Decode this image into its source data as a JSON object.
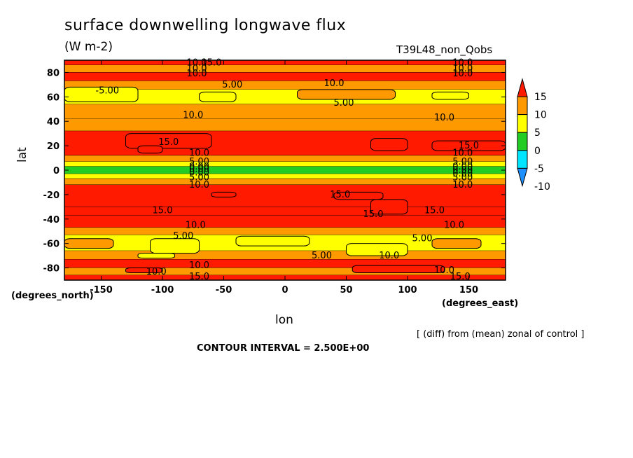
{
  "chart_data": {
    "type": "heatmap",
    "title": "surface downwelling longwave flux",
    "units": "(W m-2)",
    "run_label": "T39L48_non_Qobs",
    "xlabel": "lon",
    "ylabel": "lat",
    "x_units": "(degrees_east)",
    "y_units": "(degrees_north)",
    "note": "[ (diff) from (mean) zonal of control ]",
    "contour_interval": "CONTOUR INTERVAL = 2.500E+00",
    "xlim": [
      -180,
      180
    ],
    "ylim": [
      -90,
      90
    ],
    "x_ticks": [
      -150,
      -100,
      -50,
      0,
      50,
      100,
      150
    ],
    "y_ticks": [
      80,
      60,
      40,
      20,
      0,
      -20,
      -40,
      -60,
      -80
    ],
    "colorbar": {
      "labels": [
        "15",
        "10",
        "5",
        "0",
        "-5",
        "-10"
      ],
      "levels": [
        -10,
        -5,
        0,
        5,
        10,
        15
      ],
      "colors": [
        "#1e90ff",
        "#00e5ff",
        "#22cc22",
        "#ffff00",
        "#ff9900",
        "#ff1a00"
      ]
    },
    "lat_bands": [
      {
        "lat": [
          86,
          90
        ],
        "value": 12.5
      },
      {
        "lat": [
          80,
          86
        ],
        "value": 7.5
      },
      {
        "lat": [
          73,
          80
        ],
        "value": 12.5
      },
      {
        "lat": [
          66,
          73
        ],
        "value": 7.5
      },
      {
        "lat": [
          54,
          66
        ],
        "value": 2.5
      },
      {
        "lat": [
          42,
          54
        ],
        "value": 7.5
      },
      {
        "lat": [
          32,
          42
        ],
        "value": 7.5
      },
      {
        "lat": [
          12,
          32
        ],
        "value": 12.5
      },
      {
        "lat": [
          7,
          12
        ],
        "value": 7.5
      },
      {
        "lat": [
          3,
          7
        ],
        "value": 2.5
      },
      {
        "lat": [
          -3,
          3
        ],
        "value": -2.5
      },
      {
        "lat": [
          -7,
          -3
        ],
        "value": 2.5
      },
      {
        "lat": [
          -12,
          -7
        ],
        "value": 7.5
      },
      {
        "lat": [
          -30,
          -12
        ],
        "value": 12.5
      },
      {
        "lat": [
          -37,
          -30
        ],
        "value": 17.5
      },
      {
        "lat": [
          -47,
          -37
        ],
        "value": 12.5
      },
      {
        "lat": [
          -53,
          -47
        ],
        "value": 7.5
      },
      {
        "lat": [
          -66,
          -53
        ],
        "value": 2.5
      },
      {
        "lat": [
          -73,
          -66
        ],
        "value": 7.5
      },
      {
        "lat": [
          -80,
          -73
        ],
        "value": 12.5
      },
      {
        "lat": [
          -86,
          -80
        ],
        "value": 7.5
      },
      {
        "lat": [
          -90,
          -86
        ],
        "value": 12.5
      }
    ],
    "patches": [
      {
        "lon": [
          -180,
          -120
        ],
        "lat": [
          56,
          68
        ],
        "value": 2.5
      },
      {
        "lon": [
          -70,
          -40
        ],
        "lat": [
          56,
          64
        ],
        "value": 2.5
      },
      {
        "lon": [
          10,
          90
        ],
        "lat": [
          58,
          66
        ],
        "value": 7.5
      },
      {
        "lon": [
          120,
          150
        ],
        "lat": [
          58,
          64
        ],
        "value": 2.5
      },
      {
        "lon": [
          -130,
          -60
        ],
        "lat": [
          18,
          30
        ],
        "value": 17.5
      },
      {
        "lon": [
          70,
          100
        ],
        "lat": [
          16,
          26
        ],
        "value": 17.5
      },
      {
        "lon": [
          120,
          180
        ],
        "lat": [
          16,
          24
        ],
        "value": 17.5
      },
      {
        "lon": [
          -120,
          -100
        ],
        "lat": [
          14,
          20
        ],
        "value": 17.5
      },
      {
        "lon": [
          -60,
          -40
        ],
        "lat": [
          -22,
          -18
        ],
        "value": 17.5
      },
      {
        "lon": [
          40,
          80
        ],
        "lat": [
          -24,
          -18
        ],
        "value": 17.5
      },
      {
        "lon": [
          70,
          100
        ],
        "lat": [
          -36,
          -24
        ],
        "value": 17.5
      },
      {
        "lon": [
          -180,
          -140
        ],
        "lat": [
          -64,
          -56
        ],
        "value": 7.5
      },
      {
        "lon": [
          -110,
          -70
        ],
        "lat": [
          -68,
          -56
        ],
        "value": 2.5
      },
      {
        "lon": [
          -40,
          20
        ],
        "lat": [
          -62,
          -54
        ],
        "value": 2.5
      },
      {
        "lon": [
          50,
          100
        ],
        "lat": [
          -70,
          -60
        ],
        "value": 2.5
      },
      {
        "lon": [
          120,
          160
        ],
        "lat": [
          -64,
          -56
        ],
        "value": 7.5
      },
      {
        "lon": [
          -120,
          -90
        ],
        "lat": [
          -72,
          -68
        ],
        "value": 2.5
      },
      {
        "lon": [
          55,
          130
        ],
        "lat": [
          -84,
          -78
        ],
        "value": 17.5
      },
      {
        "lon": [
          -130,
          -100
        ],
        "lat": [
          -84,
          -80
        ],
        "value": 12.5
      }
    ],
    "contour_labels": [
      {
        "text": "10.0",
        "lon": -72,
        "lat": 88
      },
      {
        "text": "15.0",
        "lon": -60,
        "lat": 88
      },
      {
        "text": "10.0",
        "lon": -72,
        "lat": 83
      },
      {
        "text": "10.0",
        "lon": -72,
        "lat": 79
      },
      {
        "text": "10.0",
        "lon": 145,
        "lat": 88
      },
      {
        "text": "10.0",
        "lon": 145,
        "lat": 83
      },
      {
        "text": "10.0",
        "lon": 145,
        "lat": 79
      },
      {
        "text": "-5.00",
        "lon": -145,
        "lat": 65
      },
      {
        "text": "5.00",
        "lon": -43,
        "lat": 70
      },
      {
        "text": "10.0",
        "lon": 40,
        "lat": 71
      },
      {
        "text": "5.00",
        "lon": 48,
        "lat": 55
      },
      {
        "text": "10.0",
        "lon": -75,
        "lat": 45
      },
      {
        "text": "10.0",
        "lon": 130,
        "lat": 43
      },
      {
        "text": "15.0",
        "lon": -95,
        "lat": 23
      },
      {
        "text": "15.0",
        "lon": 150,
        "lat": 20
      },
      {
        "text": "10.0",
        "lon": -70,
        "lat": 14
      },
      {
        "text": "10.0",
        "lon": 145,
        "lat": 14
      },
      {
        "text": "5.00",
        "lon": -70,
        "lat": 7
      },
      {
        "text": "5.00",
        "lon": 145,
        "lat": 7
      },
      {
        "text": "0.00",
        "lon": -70,
        "lat": 3
      },
      {
        "text": "0.00",
        "lon": -70,
        "lat": 1
      },
      {
        "text": "0.00",
        "lon": 145,
        "lat": 3
      },
      {
        "text": "0.00",
        "lon": 145,
        "lat": 0
      },
      {
        "text": "0.00",
        "lon": -70,
        "lat": -2
      },
      {
        "text": "0.00",
        "lon": 145,
        "lat": -3
      },
      {
        "text": "5.00",
        "lon": -70,
        "lat": -6
      },
      {
        "text": "5.00",
        "lon": 145,
        "lat": -6
      },
      {
        "text": "10.0",
        "lon": -70,
        "lat": -12
      },
      {
        "text": "10.0",
        "lon": 145,
        "lat": -12
      },
      {
        "text": "15.0",
        "lon": 45,
        "lat": -20
      },
      {
        "text": "15.0",
        "lon": -100,
        "lat": -33
      },
      {
        "text": "15.0",
        "lon": 72,
        "lat": -36
      },
      {
        "text": "15.0",
        "lon": 122,
        "lat": -33
      },
      {
        "text": "10.0",
        "lon": -73,
        "lat": -45
      },
      {
        "text": "10.0",
        "lon": 138,
        "lat": -45
      },
      {
        "text": "5.00",
        "lon": -83,
        "lat": -54
      },
      {
        "text": "5.00",
        "lon": 112,
        "lat": -56
      },
      {
        "text": "5.00",
        "lon": 30,
        "lat": -70
      },
      {
        "text": "10.0",
        "lon": 85,
        "lat": -70
      },
      {
        "text": "10.0",
        "lon": -70,
        "lat": -78
      },
      {
        "text": "10.0",
        "lon": -105,
        "lat": -83
      },
      {
        "text": "15.0",
        "lon": -70,
        "lat": -87
      },
      {
        "text": "10.0",
        "lon": 130,
        "lat": -82
      },
      {
        "text": "15.0",
        "lon": 143,
        "lat": -87
      }
    ]
  }
}
